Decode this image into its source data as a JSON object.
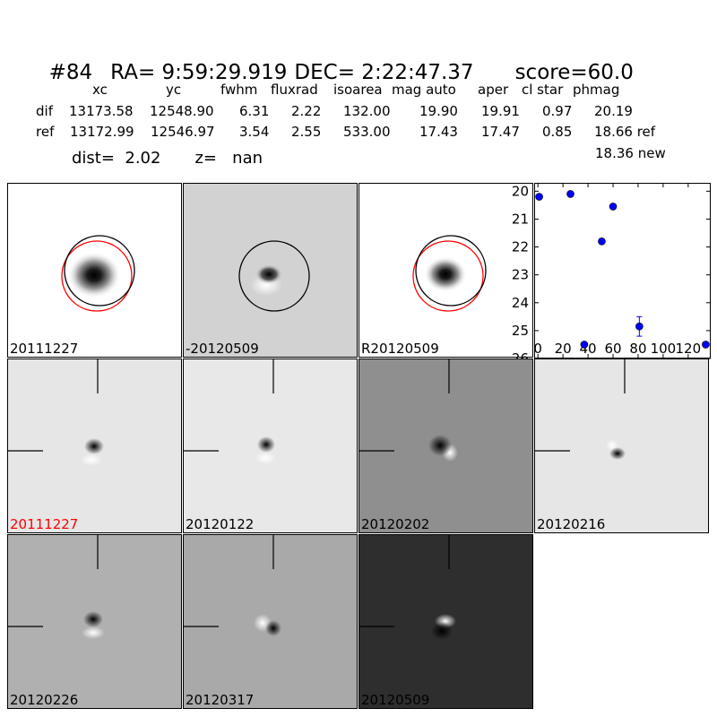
{
  "header": {
    "id": "#84",
    "ra": "RA= 9:59:29.919",
    "dec": "DEC= 2:22:47.37",
    "score": "score=60.0"
  },
  "table": {
    "columns": [
      "xc",
      "yc",
      "fwhm",
      "fluxrad",
      "isoarea",
      "mag auto",
      "aper",
      "cl star",
      "phmag"
    ],
    "rows": [
      {
        "label": "dif",
        "values": [
          "13173.58",
          "12548.90",
          "6.31",
          "2.22",
          "132.00",
          "19.90",
          "19.91",
          "0.97",
          "20.19"
        ]
      },
      {
        "label": "ref",
        "values": [
          "13172.99",
          "12546.97",
          "3.54",
          "2.55",
          "533.00",
          "17.43",
          "17.47",
          "0.85",
          "18.66 ref"
        ]
      }
    ],
    "extra": "18.36 new"
  },
  "dist_line": {
    "dist": "dist=  2.02",
    "z": "z=   nan"
  },
  "top_panels": [
    {
      "label": "20111227",
      "bg": "#ffffff"
    },
    {
      "label": "-20120509",
      "bg": "#d2d2d2"
    },
    {
      "label": "R20120509",
      "bg": "#ffffff"
    }
  ],
  "stamp_panels": [
    {
      "label": "20111227",
      "label_color": "#ff0000",
      "bg": "#e6e6e6"
    },
    {
      "label": "20120122",
      "label_color": "#000000",
      "bg": "#e8e8e8"
    },
    {
      "label": "20120202",
      "label_color": "#000000",
      "bg": "#8f8f8f"
    },
    {
      "label": "20120216",
      "label_color": "#000000",
      "bg": "#e6e6e6"
    },
    {
      "label": "20120226",
      "label_color": "#000000",
      "bg": "#b0b0b0"
    },
    {
      "label": "20120317",
      "label_color": "#000000",
      "bg": "#a9a9a9"
    },
    {
      "label": "20120509",
      "label_color": "#000000",
      "bg": "#2e2e2e"
    }
  ],
  "chart_data": {
    "type": "scatter",
    "xlim": [
      -3,
      138
    ],
    "ylim": [
      26,
      19.7
    ],
    "y_inverted": true,
    "xticks": [
      0,
      20,
      40,
      60,
      80,
      100,
      120
    ],
    "yticks": [
      20,
      21,
      22,
      23,
      24,
      25,
      26
    ],
    "points": [
      {
        "x": 1,
        "y": 20.2
      },
      {
        "x": 26,
        "y": 20.1
      },
      {
        "x": 37,
        "y": 25.5
      },
      {
        "x": 51,
        "y": 21.8
      },
      {
        "x": 60,
        "y": 20.55
      },
      {
        "x": 81,
        "y": 24.85,
        "err": 0.35
      },
      {
        "x": 134,
        "y": 25.5
      }
    ],
    "marker_color": "#0000ff"
  }
}
